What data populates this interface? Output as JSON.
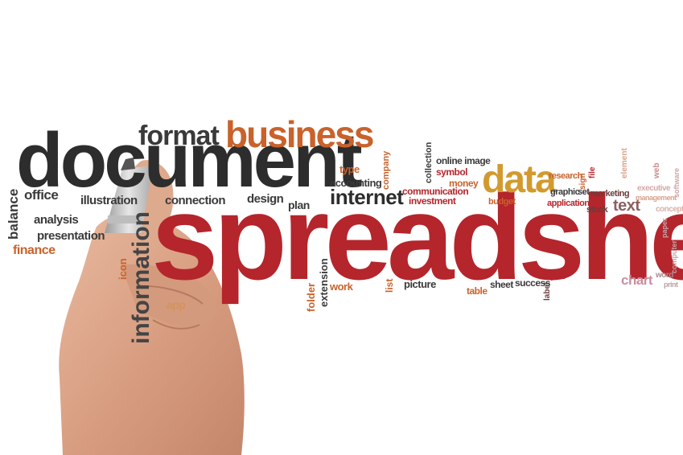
{
  "scene": {
    "background": "#ffffff",
    "hand_color": "#d9a184",
    "marker_color": "#c9c9c9"
  },
  "words": {
    "spreadsheet": "spreadsheet",
    "document": "document",
    "format": "format",
    "business": "business",
    "data": "data",
    "internet": "internet",
    "information": "information",
    "balance": "balance",
    "office": "office",
    "illustration": "illustration",
    "connection": "connection",
    "design": "design",
    "plan": "plan",
    "analysis": "analysis",
    "presentation": "presentation",
    "finance": "finance",
    "icon": "icon",
    "app": "app",
    "folder": "folder",
    "extension": "extension",
    "work": "work",
    "list": "list",
    "picture": "picture",
    "type": "type",
    "accounting": "accounting",
    "company": "company",
    "collection": "collection",
    "online_image": "online image",
    "symbol": "symbol",
    "money": "money",
    "communication": "communication",
    "investment": "investment",
    "budget": "budget",
    "research": "research",
    "graphic": "graphic",
    "set": "set",
    "sign": "sign",
    "file": "file",
    "marketing": "marketing",
    "application": "application",
    "stock": "stock",
    "text": "text",
    "element": "element",
    "web": "web",
    "executive": "executive",
    "management": "management",
    "software": "software",
    "concept": "concept",
    "computer": "computer",
    "paper": "paper",
    "chart": "chart",
    "word": "word",
    "print": "print",
    "report": "report",
    "label": "label",
    "table": "table",
    "sheet": "sheet",
    "success": "success"
  }
}
